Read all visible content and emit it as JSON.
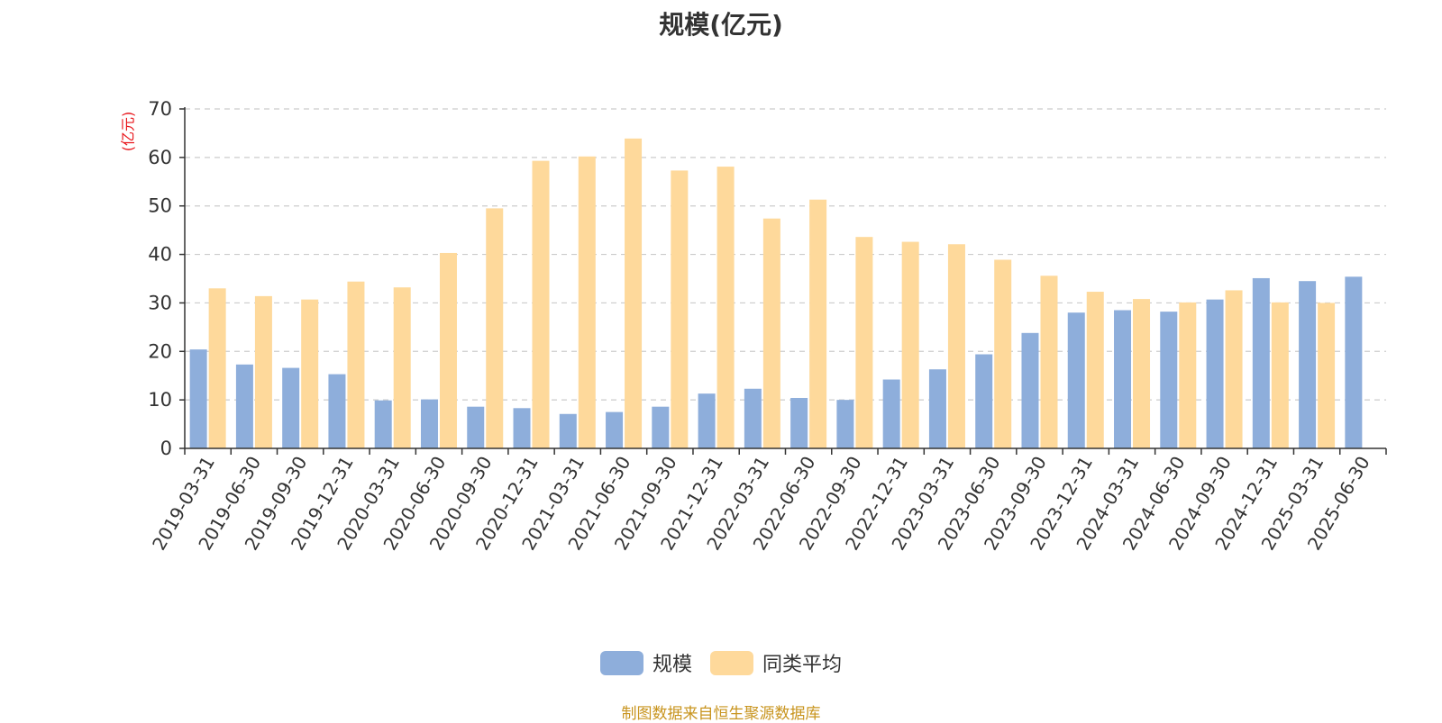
{
  "source_note": "制图数据来自恒生聚源数据库",
  "chart_data": {
    "type": "bar",
    "title": "规模(亿元)",
    "ylabel": "(亿元)",
    "xlabel": "",
    "ylim": [
      0,
      70
    ],
    "yticks": [
      0,
      10,
      20,
      30,
      40,
      50,
      60,
      70
    ],
    "grid": true,
    "legend_position": "bottom",
    "categories": [
      "2019-03-31",
      "2019-06-30",
      "2019-09-30",
      "2019-12-31",
      "2020-03-31",
      "2020-06-30",
      "2020-09-30",
      "2020-12-31",
      "2021-03-31",
      "2021-06-30",
      "2021-09-30",
      "2021-12-31",
      "2022-03-31",
      "2022-06-30",
      "2022-09-30",
      "2022-12-31",
      "2023-03-31",
      "2023-06-30",
      "2023-09-30",
      "2023-12-31",
      "2024-03-31",
      "2024-06-30",
      "2024-09-30",
      "2024-12-31",
      "2025-03-31",
      "2025-06-30"
    ],
    "series": [
      {
        "name": "规模",
        "color": "#8eaedb",
        "values": [
          20.4,
          17.3,
          16.6,
          15.3,
          9.9,
          10.1,
          8.6,
          8.3,
          7.1,
          7.5,
          8.6,
          11.3,
          12.3,
          10.4,
          10.0,
          14.2,
          16.3,
          19.4,
          23.8,
          28.0,
          28.5,
          28.2,
          30.7,
          35.1,
          34.5,
          35.4
        ]
      },
      {
        "name": "同类平均",
        "color": "#fed99b",
        "values": [
          33.0,
          31.4,
          30.7,
          34.4,
          33.2,
          40.3,
          49.5,
          59.3,
          60.2,
          63.9,
          57.3,
          58.1,
          47.4,
          51.3,
          43.6,
          42.6,
          42.1,
          38.9,
          35.6,
          32.3,
          30.8,
          30.1,
          32.6,
          30.1,
          30.0,
          null
        ]
      }
    ]
  }
}
